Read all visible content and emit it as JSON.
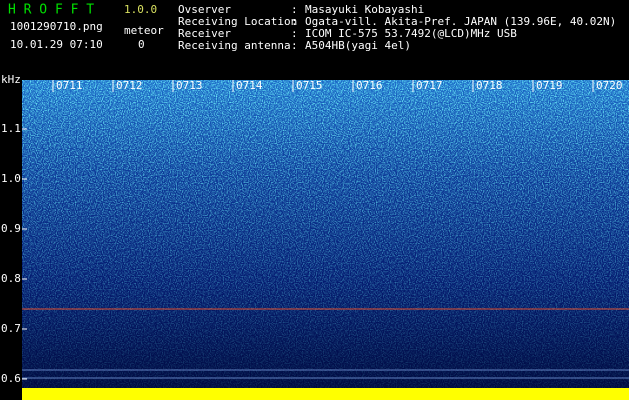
{
  "header": {
    "app_name": "H R O F F T",
    "version": "1.0.0",
    "file_name": "1001290710.png",
    "timestamp": "10.01.29 07:10",
    "meteor_label": "meteor",
    "meteor_count": "0"
  },
  "info": [
    {
      "label": "Ovserver",
      "value": "Masayuki Kobayashi"
    },
    {
      "label": "Receiving Location",
      "value": "Ogata-vill. Akita-Pref. JAPAN (139.96E, 40.02N)"
    },
    {
      "label": "Receiver",
      "value": "ICOM IC-575 53.7492(@LCD)MHz USB"
    },
    {
      "label": "Receiving antenna",
      "value": "A504HB(yagi 4el)"
    }
  ],
  "separator": ":",
  "spectrogram": {
    "axis_unit": "kHz",
    "freq_labels": [
      "1.1",
      "1.0",
      "0.9",
      "0.8",
      "0.7",
      "0.6"
    ],
    "time_labels": [
      "0711",
      "0712",
      "0713",
      "0714",
      "0715",
      "0716",
      "0717",
      "0718",
      "0719",
      "0720"
    ]
  }
}
